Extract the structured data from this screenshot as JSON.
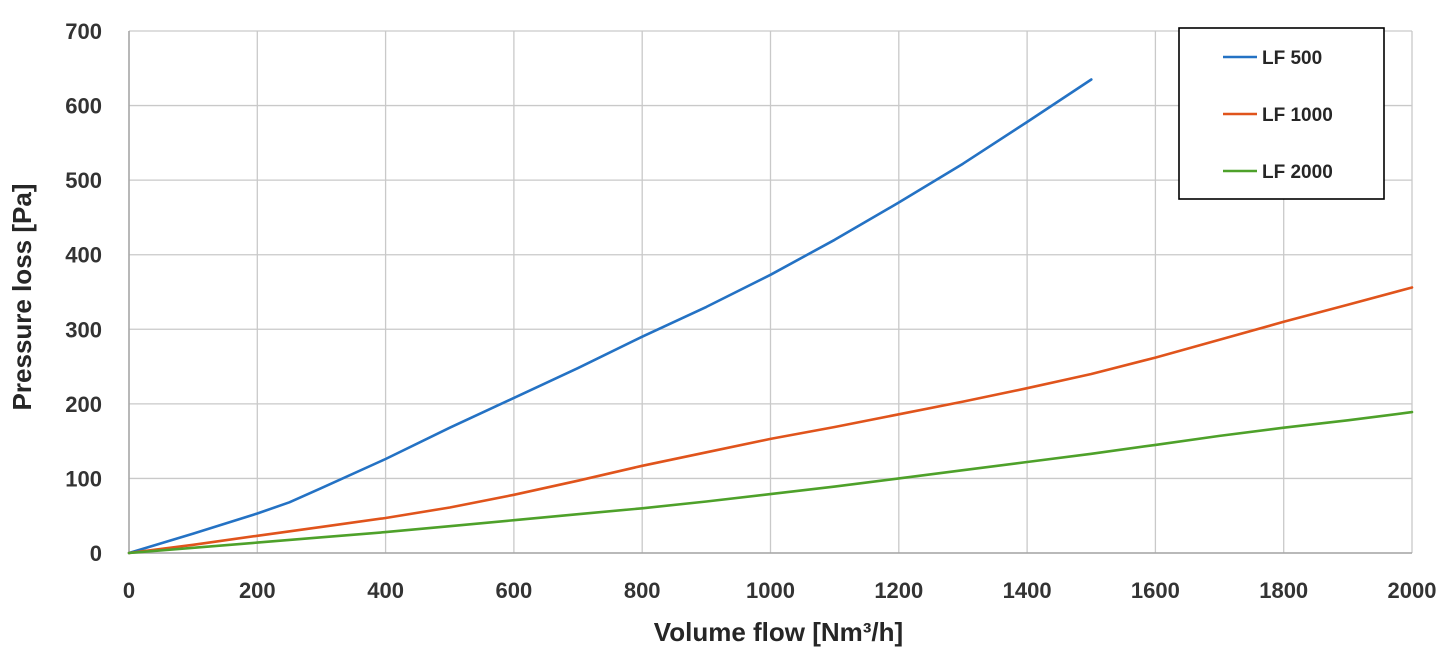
{
  "chart_data": {
    "type": "line",
    "xlabel": "Volume flow  [Nm³/h]",
    "ylabel": "Pressure loss  [Pa]",
    "xlim": [
      0,
      2000
    ],
    "ylim": [
      0,
      700
    ],
    "x_ticks": [
      "0",
      "200",
      "400",
      "600",
      "800",
      "1000",
      "1200",
      "1400",
      "1600",
      "1800",
      "2000"
    ],
    "y_ticks": [
      "0",
      "100",
      "200",
      "300",
      "400",
      "500",
      "600",
      "700"
    ],
    "grid": true,
    "legend_position": "top-right",
    "series": [
      {
        "name": "LF 500",
        "color": "#2472c4",
        "x": [
          0,
          100,
          200,
          250,
          300,
          400,
          500,
          600,
          700,
          800,
          900,
          1000,
          1100,
          1200,
          1300,
          1400,
          1500
        ],
        "y": [
          0,
          26,
          53,
          68,
          87,
          126,
          168,
          208,
          248,
          290,
          330,
          373,
          420,
          470,
          522,
          578,
          635
        ]
      },
      {
        "name": "LF 1000",
        "color": "#e0541c",
        "x": [
          0,
          100,
          200,
          300,
          400,
          500,
          600,
          700,
          800,
          900,
          1000,
          1100,
          1200,
          1300,
          1400,
          1500,
          1600,
          1700,
          1800,
          1900,
          2000
        ],
        "y": [
          0,
          11,
          23,
          35,
          47,
          61,
          78,
          97,
          117,
          135,
          153,
          169,
          186,
          203,
          221,
          240,
          262,
          286,
          310,
          333,
          356
        ]
      },
      {
        "name": "LF 2000",
        "color": "#4ea12a",
        "x": [
          0,
          100,
          200,
          300,
          400,
          500,
          600,
          700,
          800,
          900,
          1000,
          1100,
          1200,
          1300,
          1400,
          1500,
          1600,
          1700,
          1800,
          1900,
          2000
        ],
        "y": [
          0,
          7,
          14,
          21,
          28,
          36,
          44,
          52,
          60,
          69,
          79,
          89,
          100,
          111,
          122,
          133,
          145,
          157,
          168,
          178,
          189
        ]
      }
    ]
  }
}
